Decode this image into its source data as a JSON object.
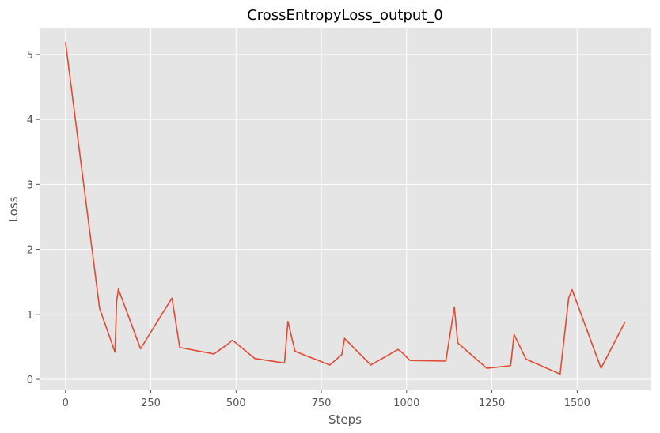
{
  "chart_data": {
    "type": "line",
    "title": "CrossEntropyLoss_output_0",
    "xlabel": "Steps",
    "ylabel": "Loss",
    "xlim": [
      -76,
      1715
    ],
    "ylim": [
      -0.17,
      5.4
    ],
    "xticks": [
      0,
      250,
      500,
      750,
      1000,
      1250,
      1500
    ],
    "xtick_labels": [
      "0",
      "250",
      "500",
      "750",
      "1000",
      "1250",
      "1500"
    ],
    "yticks": [
      0,
      1,
      2,
      3,
      4,
      5
    ],
    "ytick_labels": [
      "0",
      "1",
      "2",
      "3",
      "4",
      "5"
    ],
    "grid": true,
    "colors": {
      "line": "#e24a33",
      "plot_bg": "#e5e5e5",
      "grid": "#ffffff"
    },
    "series": [
      {
        "x": [
          0,
          100,
          145,
          150,
          155,
          220,
          312,
          335,
          435,
          478,
          488,
          495,
          555,
          642,
          652,
          673,
          775,
          810,
          818,
          895,
          975,
          985,
          1010,
          1115,
          1140,
          1150,
          1235,
          1305,
          1315,
          1350,
          1450,
          1475,
          1485,
          1570,
          1640
        ],
        "y": [
          5.19,
          1.09,
          0.42,
          1.2,
          1.39,
          0.47,
          1.25,
          0.49,
          0.39,
          0.55,
          0.6,
          0.58,
          0.32,
          0.25,
          0.89,
          0.43,
          0.22,
          0.38,
          0.63,
          0.22,
          0.46,
          0.42,
          0.29,
          0.28,
          1.11,
          0.56,
          0.17,
          0.21,
          0.69,
          0.31,
          0.08,
          1.25,
          1.38,
          0.17,
          0.88
        ]
      }
    ]
  }
}
